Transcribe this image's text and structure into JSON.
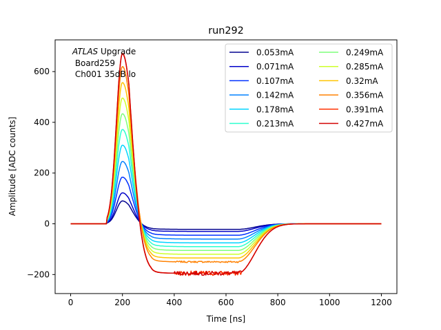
{
  "chart_data": {
    "type": "line",
    "title": "run292",
    "xlabel": "Time [ns]",
    "ylabel": "Amplitude [ADC counts]",
    "xlim": [
      -60,
      1260
    ],
    "ylim": [
      -275,
      725
    ],
    "xticks": [
      0,
      200,
      400,
      600,
      800,
      1000,
      1200
    ],
    "yticks": [
      -200,
      0,
      200,
      400,
      600
    ],
    "annotation": {
      "italic": "ATLAS",
      "rest": " Upgrade",
      "line2": " Board259",
      "line3": " Ch001 35dB lo"
    },
    "legend_position": "upper-right",
    "pulse_shape": {
      "baseline_end_ns": 140,
      "peak_ns": 200,
      "zero_cross_ns": 310,
      "undershoot_end_ns": 645,
      "recovery_end_ns": 840,
      "end_ns": 1200
    },
    "series": [
      {
        "name": "0.053mA",
        "peak": 90,
        "undershoot": -22,
        "color": "#00008f",
        "noise": 0
      },
      {
        "name": "0.071mA",
        "peak": 122,
        "undershoot": -30,
        "color": "#0000c8",
        "noise": 0
      },
      {
        "name": "0.107mA",
        "peak": 184,
        "undershoot": -45,
        "color": "#0030ff",
        "noise": 0
      },
      {
        "name": "0.142mA",
        "peak": 246,
        "undershoot": -60,
        "color": "#0080ff",
        "noise": 0
      },
      {
        "name": "0.178mA",
        "peak": 310,
        "undershoot": -75,
        "color": "#00d4ff",
        "noise": 0
      },
      {
        "name": "0.213mA",
        "peak": 372,
        "undershoot": -90,
        "color": "#29ffce",
        "noise": 0
      },
      {
        "name": "0.249mA",
        "peak": 434,
        "undershoot": -105,
        "color": "#7dff7a",
        "noise": 0
      },
      {
        "name": "0.285mA",
        "peak": 496,
        "undershoot": -120,
        "color": "#ceff29",
        "noise": 0
      },
      {
        "name": "0.32mA",
        "peak": 557,
        "undershoot": -135,
        "color": "#ffc400",
        "noise": 0
      },
      {
        "name": "0.356mA",
        "peak": 620,
        "undershoot": -150,
        "color": "#ff8000",
        "noise": 3
      },
      {
        "name": "0.391mA",
        "peak": 672,
        "undershoot": -195,
        "color": "#ff3000",
        "noise": 9
      },
      {
        "name": "0.427mA",
        "peak": 670,
        "undershoot": -195,
        "color": "#d20000",
        "noise": 8
      }
    ]
  }
}
